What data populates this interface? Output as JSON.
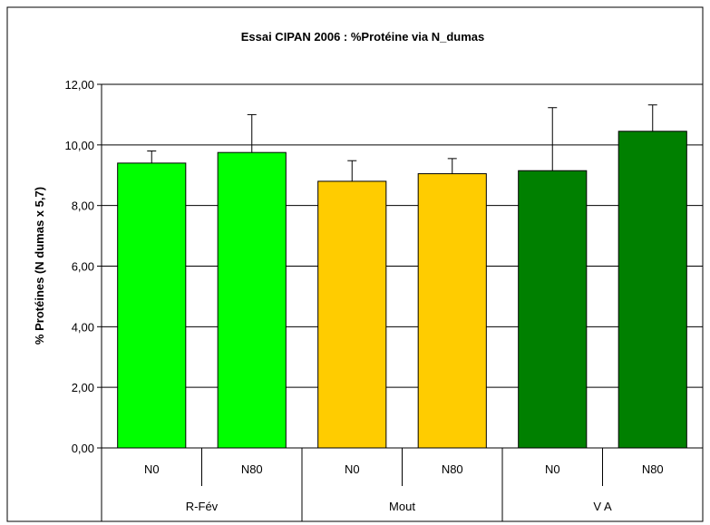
{
  "chart_data": {
    "type": "bar",
    "title": "Essai CIPAN 2006 : %Protéine via N_dumas",
    "ylabel": "% Protéines (N dumas x 5,7)",
    "xlabel": "",
    "ylim": [
      0,
      12
    ],
    "yticks": [
      "0,00",
      "2,00",
      "4,00",
      "6,00",
      "8,00",
      "10,00",
      "12,00"
    ],
    "grid": true,
    "legend": "none",
    "categories": [
      "N0",
      "N80",
      "N0",
      "N80",
      "N0",
      "N80"
    ],
    "groups": [
      {
        "label": "R-Fév",
        "span": [
          0,
          1
        ]
      },
      {
        "label": "Mout",
        "span": [
          2,
          3
        ]
      },
      {
        "label": "V A",
        "span": [
          4,
          5
        ]
      }
    ],
    "values": [
      9.4,
      9.75,
      8.8,
      9.05,
      9.15,
      10.45
    ],
    "error_plus": [
      0.4,
      1.25,
      0.68,
      0.5,
      2.08,
      0.87
    ],
    "colors": [
      "#00ff00",
      "#00ff00",
      "#ffcc00",
      "#ffcc00",
      "#008000",
      "#008000"
    ]
  }
}
